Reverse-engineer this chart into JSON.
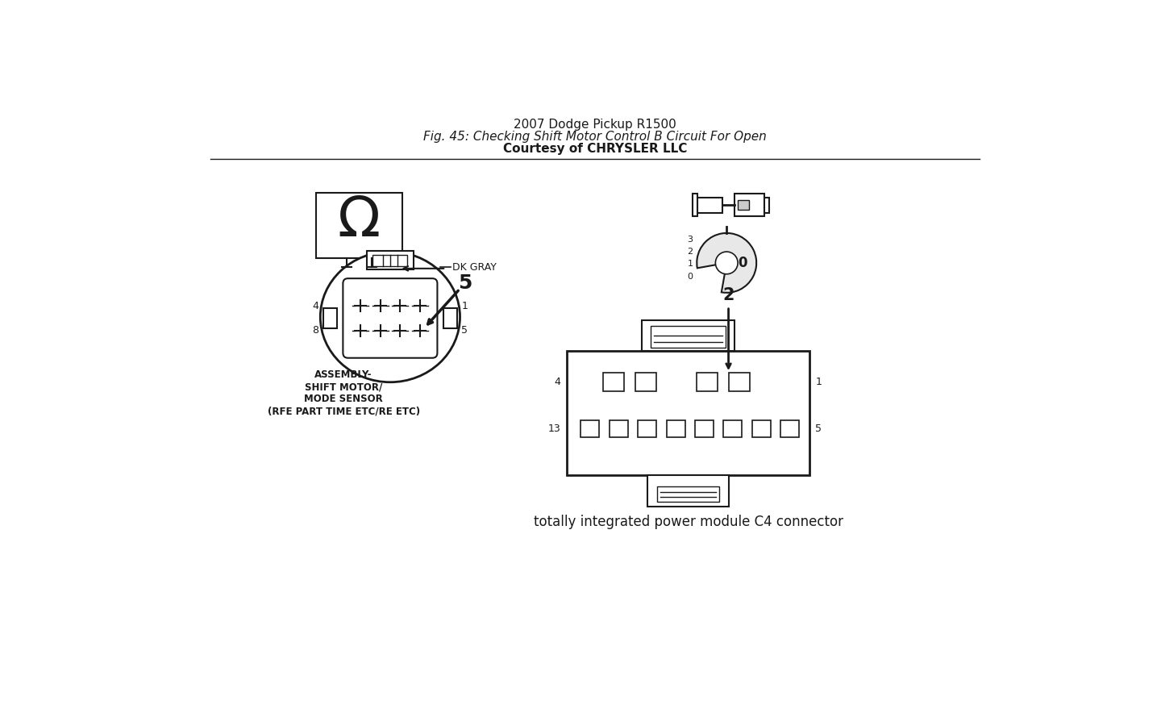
{
  "title_line1": "2007 Dodge Pickup R1500",
  "title_line2": "Fig. 45: Checking Shift Motor Control B Circuit For Open",
  "title_line3": "Courtesy of CHRYSLER LLC",
  "bg_color": "#ffffff",
  "line_color": "#1a1a1a",
  "text_color": "#1a1a1a",
  "title_fontsize": 11,
  "label_fontsize": 9,
  "bottom_label": "totally integrated power module C4 connector",
  "assembly_label": "ASSEMBLY-\nSHIFT MOTOR/\nMODE SENSOR\n(RFE PART TIME ETC/RE ETC)"
}
